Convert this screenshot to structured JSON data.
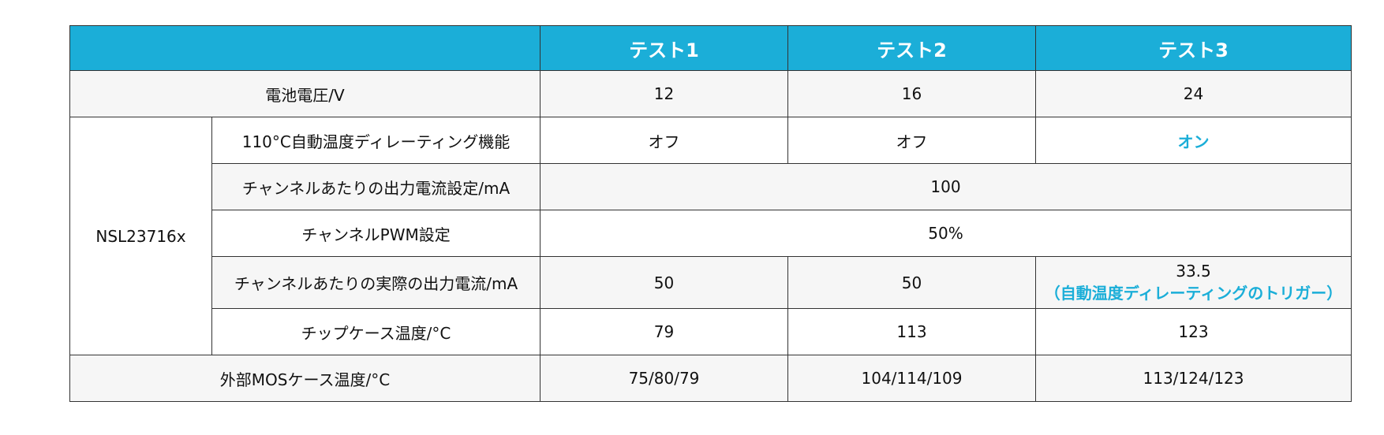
{
  "colors": {
    "accent": "#1BAED8",
    "row_alt": "#F6F6F6"
  },
  "header": {
    "blank": "",
    "cols": [
      "テスト1",
      "テスト2",
      "テスト3"
    ]
  },
  "rows": {
    "battery": {
      "label": "電池電圧/V",
      "values": [
        "12",
        "16",
        "24"
      ]
    },
    "group_label": "NSL23716x",
    "derating": {
      "label": "110°C自動温度ディレーティング機能",
      "values": [
        "オフ",
        "オフ",
        "オン"
      ]
    },
    "current_setting": {
      "label": "チャンネルあたりの出力電流設定/mA",
      "value": "100"
    },
    "pwm": {
      "label": "チャンネルPWM設定",
      "value": "50%"
    },
    "actual_current": {
      "label": "チャンネルあたりの実際の出力電流/mA",
      "values": [
        "50",
        "50",
        "33.5"
      ],
      "note": "（自動温度ディレーティングのトリガー）"
    },
    "chip_temp": {
      "label": "チップケース温度/°C",
      "values": [
        "79",
        "113",
        "123"
      ]
    },
    "mos_temp": {
      "label": "外部MOSケース温度/°C",
      "values": [
        "75/80/79",
        "104/114/109",
        "113/124/123"
      ]
    }
  }
}
